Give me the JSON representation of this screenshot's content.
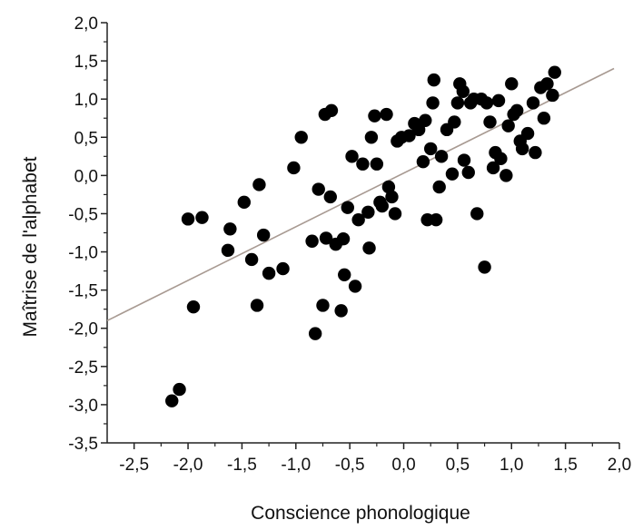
{
  "chart_data": {
    "type": "scatter",
    "title": "",
    "xlabel": "Conscience phonologique",
    "ylabel": "Maîtrise de l'alphabet",
    "xlim": [
      -2.75,
      2.0
    ],
    "ylim": [
      -3.5,
      2.0
    ],
    "x_ticks": [
      {
        "value": -2.5,
        "label": "-2,5"
      },
      {
        "value": -2.0,
        "label": "-2,0"
      },
      {
        "value": -1.5,
        "label": "-1,5"
      },
      {
        "value": -1.0,
        "label": "-1,0"
      },
      {
        "value": -0.5,
        "label": "-0,5"
      },
      {
        "value": 0.0,
        "label": "0,0"
      },
      {
        "value": 0.5,
        "label": "0,5"
      },
      {
        "value": 1.0,
        "label": "1,0"
      },
      {
        "value": 1.5,
        "label": "1,5"
      },
      {
        "value": 2.0,
        "label": "2,0"
      }
    ],
    "y_ticks": [
      {
        "value": 2.0,
        "label": "2,0"
      },
      {
        "value": 1.5,
        "label": "1,5"
      },
      {
        "value": 1.0,
        "label": "1,0"
      },
      {
        "value": 0.5,
        "label": "0,5"
      },
      {
        "value": 0.0,
        "label": "0,0"
      },
      {
        "value": -0.5,
        "label": "-0,5"
      },
      {
        "value": -1.0,
        "label": "-1,0"
      },
      {
        "value": -1.5,
        "label": "-1,5"
      },
      {
        "value": -2.0,
        "label": "-2,0"
      },
      {
        "value": -2.5,
        "label": "-2,5"
      },
      {
        "value": -3.0,
        "label": "-3,0"
      },
      {
        "value": -3.5,
        "label": "-3,5"
      }
    ],
    "grid": false,
    "trendline": {
      "x": [
        -2.75,
        1.95
      ],
      "y": [
        -1.9,
        1.4
      ],
      "color": "#a89a92"
    },
    "point_color": "#000000",
    "points": [
      [
        -2.15,
        -2.95
      ],
      [
        -2.08,
        -2.8
      ],
      [
        -2.0,
        -0.57
      ],
      [
        -1.95,
        -1.72
      ],
      [
        -1.87,
        -0.55
      ],
      [
        -1.63,
        -0.98
      ],
      [
        -1.61,
        -0.7
      ],
      [
        -1.48,
        -0.35
      ],
      [
        -1.41,
        -1.1
      ],
      [
        -1.36,
        -1.7
      ],
      [
        -1.34,
        -0.12
      ],
      [
        -1.3,
        -0.78
      ],
      [
        -1.25,
        -1.28
      ],
      [
        -1.12,
        -1.22
      ],
      [
        -1.02,
        0.1
      ],
      [
        -0.95,
        0.5
      ],
      [
        -0.85,
        -0.86
      ],
      [
        -0.82,
        -2.07
      ],
      [
        -0.79,
        -0.18
      ],
      [
        -0.75,
        -1.7
      ],
      [
        -0.72,
        -0.82
      ],
      [
        -0.73,
        0.8
      ],
      [
        -0.67,
        0.85
      ],
      [
        -0.68,
        -0.28
      ],
      [
        -0.63,
        -0.9
      ],
      [
        -0.58,
        -1.77
      ],
      [
        -0.56,
        -0.83
      ],
      [
        -0.55,
        -1.3
      ],
      [
        -0.52,
        -0.42
      ],
      [
        -0.48,
        0.25
      ],
      [
        -0.45,
        -1.45
      ],
      [
        -0.42,
        -0.58
      ],
      [
        -0.38,
        0.15
      ],
      [
        -0.33,
        -0.48
      ],
      [
        -0.32,
        -0.95
      ],
      [
        -0.3,
        0.5
      ],
      [
        -0.27,
        0.78
      ],
      [
        -0.25,
        0.15
      ],
      [
        -0.22,
        -0.35
      ],
      [
        -0.2,
        -0.4
      ],
      [
        -0.16,
        0.8
      ],
      [
        -0.14,
        -0.15
      ],
      [
        -0.11,
        -0.28
      ],
      [
        -0.08,
        -0.5
      ],
      [
        -0.06,
        0.45
      ],
      [
        -0.02,
        0.5
      ],
      [
        0.05,
        0.52
      ],
      [
        0.1,
        0.68
      ],
      [
        0.14,
        0.6
      ],
      [
        0.18,
        0.18
      ],
      [
        0.2,
        0.72
      ],
      [
        0.22,
        -0.58
      ],
      [
        0.25,
        0.35
      ],
      [
        0.27,
        0.95
      ],
      [
        0.28,
        1.25
      ],
      [
        0.3,
        -0.58
      ],
      [
        0.33,
        -0.15
      ],
      [
        0.35,
        0.25
      ],
      [
        0.4,
        0.6
      ],
      [
        0.45,
        0.02
      ],
      [
        0.47,
        0.7
      ],
      [
        0.5,
        0.95
      ],
      [
        0.52,
        1.2
      ],
      [
        0.55,
        1.1
      ],
      [
        0.56,
        0.2
      ],
      [
        0.6,
        0.04
      ],
      [
        0.62,
        0.95
      ],
      [
        0.65,
        1.0
      ],
      [
        0.68,
        -0.5
      ],
      [
        0.72,
        1.0
      ],
      [
        0.75,
        -1.2
      ],
      [
        0.77,
        0.95
      ],
      [
        0.8,
        0.7
      ],
      [
        0.83,
        0.1
      ],
      [
        0.85,
        0.3
      ],
      [
        0.88,
        0.98
      ],
      [
        0.9,
        0.22
      ],
      [
        0.95,
        0.0
      ],
      [
        0.97,
        0.65
      ],
      [
        1.0,
        1.2
      ],
      [
        1.02,
        0.8
      ],
      [
        1.05,
        0.85
      ],
      [
        1.08,
        0.45
      ],
      [
        1.1,
        0.35
      ],
      [
        1.15,
        0.55
      ],
      [
        1.2,
        0.95
      ],
      [
        1.22,
        0.3
      ],
      [
        1.27,
        1.15
      ],
      [
        1.3,
        0.75
      ],
      [
        1.33,
        1.2
      ],
      [
        1.38,
        1.05
      ],
      [
        1.4,
        1.35
      ]
    ]
  }
}
